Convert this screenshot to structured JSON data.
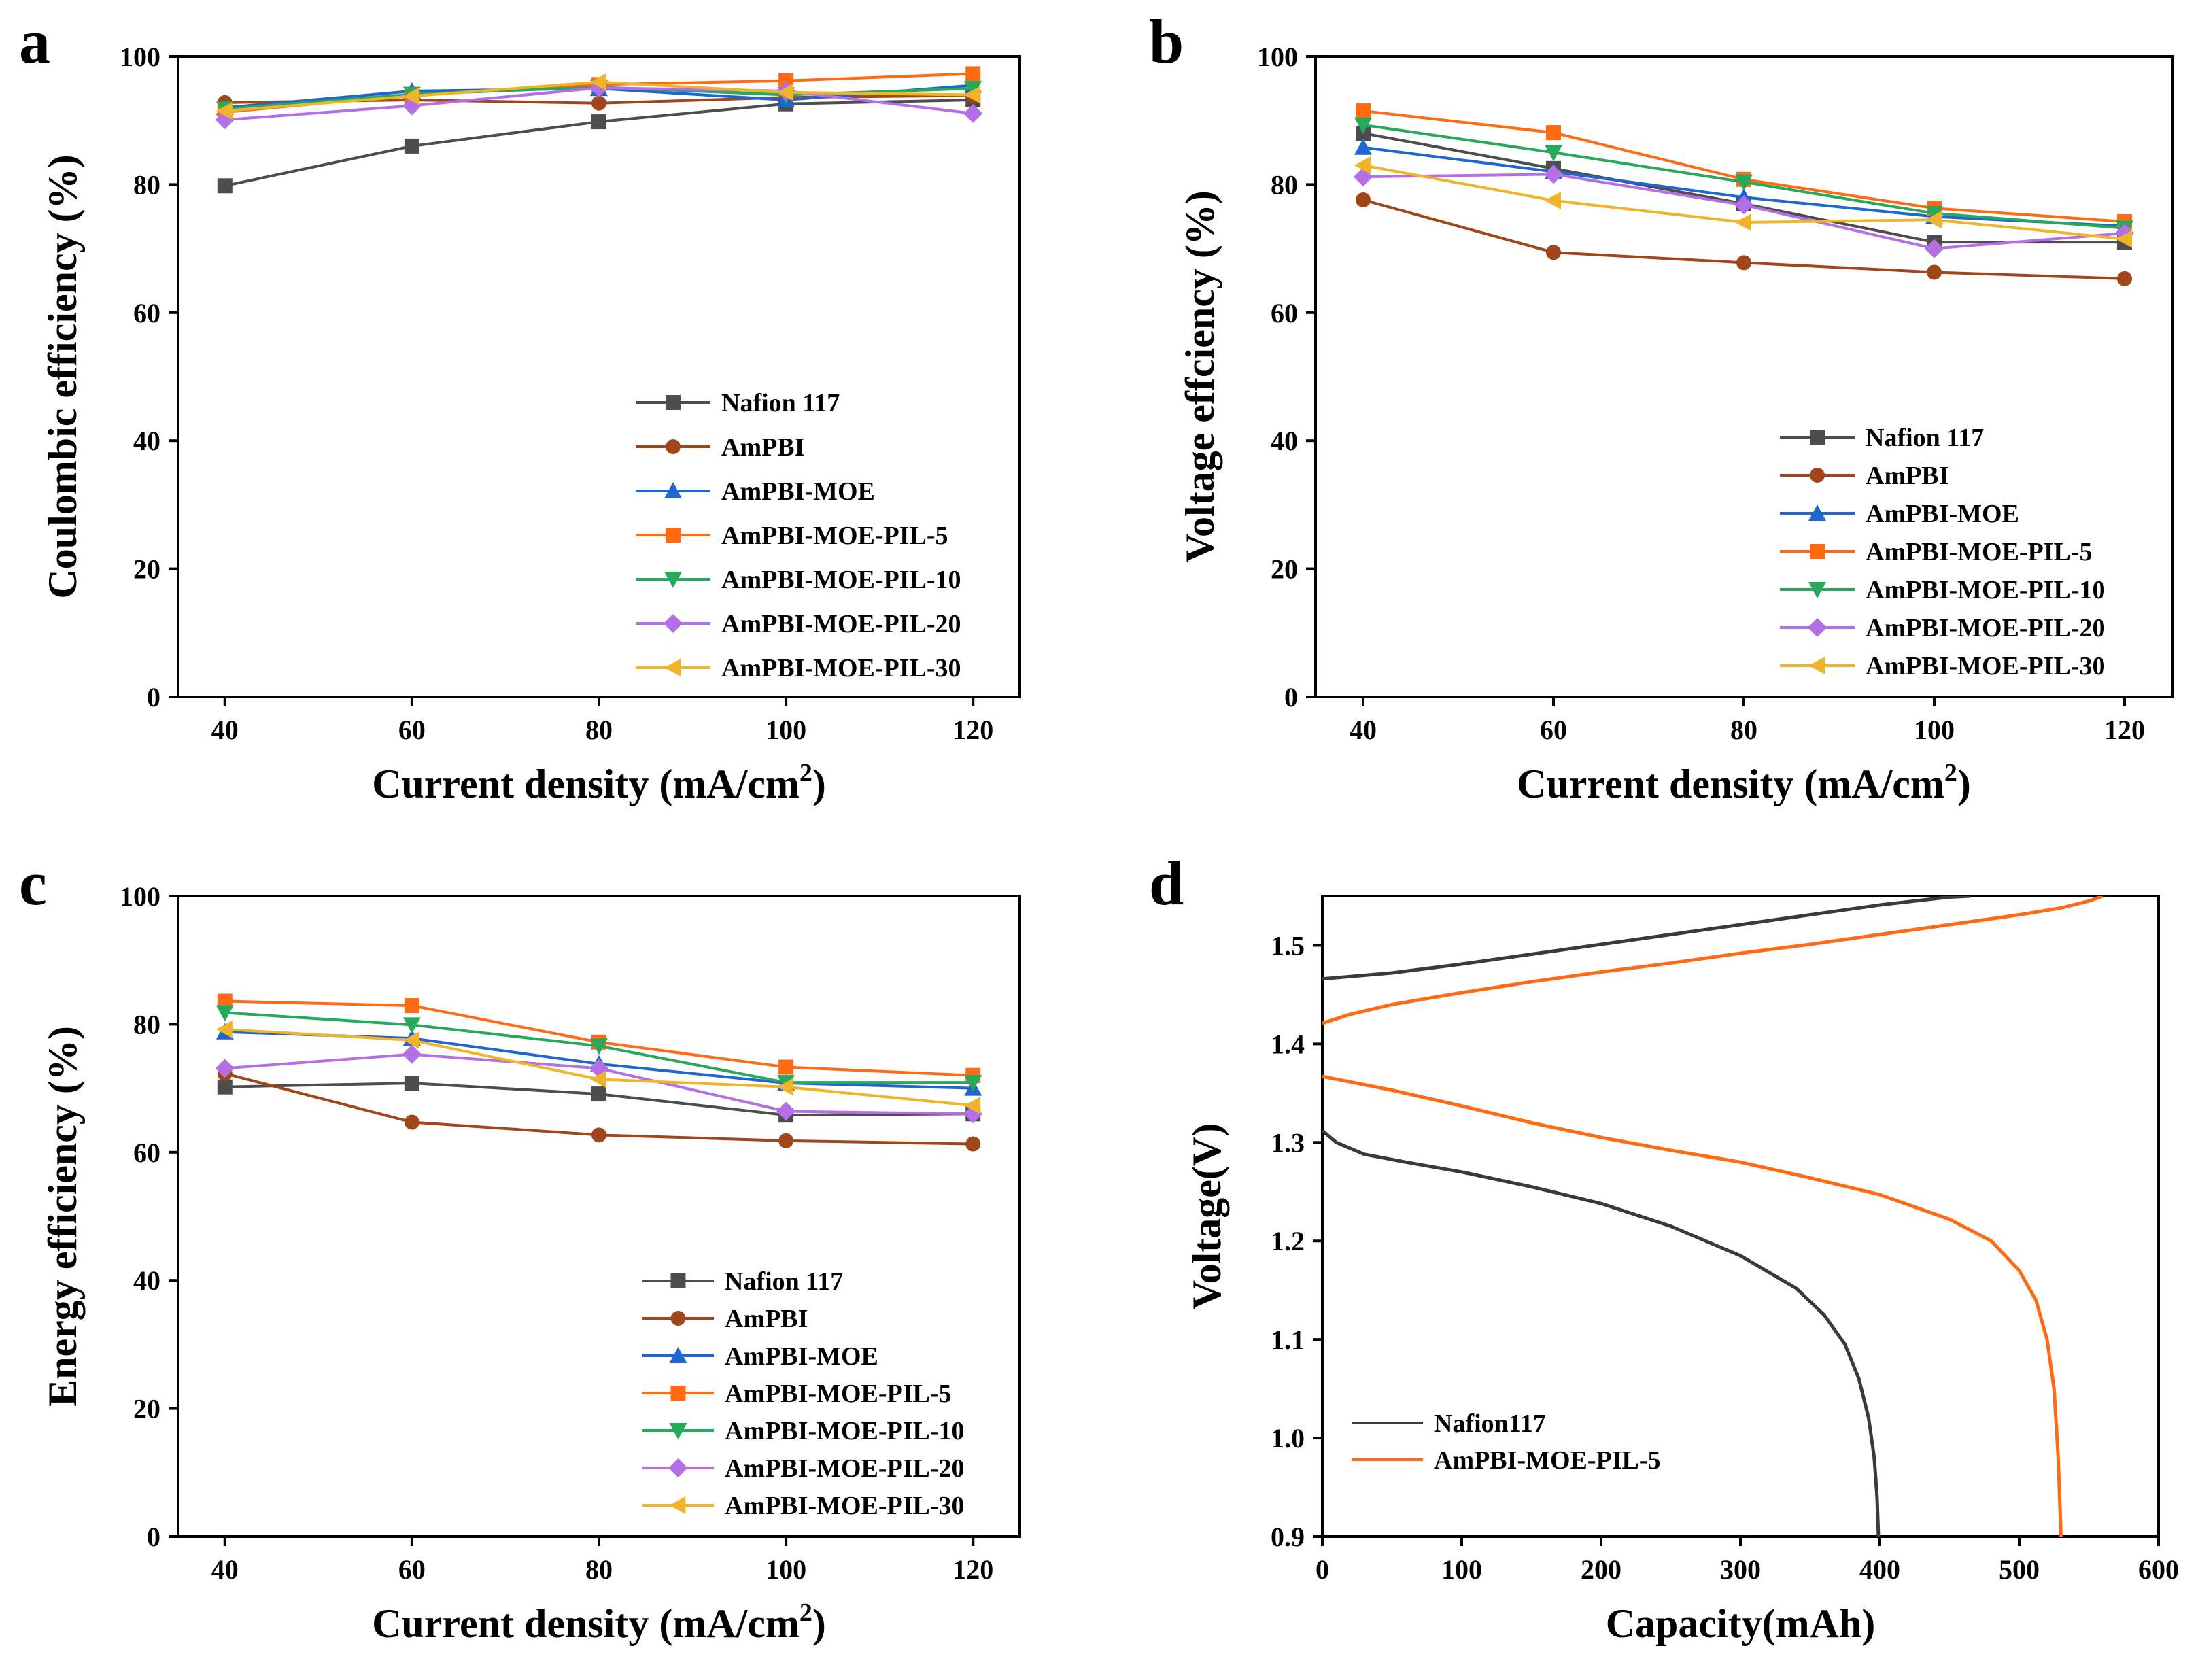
{
  "chart_data": [
    {
      "panel": "a",
      "type": "line",
      "xlabel": "Current density (mA/cm",
      "xlabel_sup": "2",
      "xlabel_close": ")",
      "ylabel": "Coulombic efficiency (%)",
      "xlim": [
        35,
        125
      ],
      "ylim": [
        0,
        100
      ],
      "xticks": [
        40,
        60,
        80,
        100,
        120
      ],
      "yticks": [
        0,
        20,
        40,
        60,
        80,
        100
      ],
      "x": [
        40,
        60,
        80,
        100,
        120
      ],
      "legend_position": "bottom-right",
      "series": [
        {
          "name": "Nafion 117",
          "color": "#4d4d4d",
          "marker": "square",
          "values": [
            79.8,
            86.0,
            89.8,
            92.6,
            93.2
          ]
        },
        {
          "name": "AmPBI",
          "color": "#a0461a",
          "marker": "circle",
          "values": [
            92.8,
            93.2,
            92.7,
            93.6,
            93.9
          ]
        },
        {
          "name": "AmPBI-MOE",
          "color": "#1f66d1",
          "marker": "triangle-up",
          "values": [
            92.0,
            94.6,
            95.0,
            93.2,
            95.5
          ]
        },
        {
          "name": "AmPBI-MOE-PIL-5",
          "color": "#ff6a13",
          "marker": "square",
          "values": [
            91.3,
            94.0,
            95.6,
            96.2,
            97.3
          ]
        },
        {
          "name": "AmPBI-MOE-PIL-10",
          "color": "#27a85a",
          "marker": "triangle-down",
          "values": [
            91.8,
            94.1,
            95.2,
            94.0,
            95.0
          ]
        },
        {
          "name": "AmPBI-MOE-PIL-20",
          "color": "#b46ee6",
          "marker": "diamond",
          "values": [
            90.1,
            92.3,
            95.1,
            94.6,
            91.1
          ]
        },
        {
          "name": "AmPBI-MOE-PIL-30",
          "color": "#f0b42a",
          "marker": "triangle-left",
          "values": [
            91.5,
            93.8,
            96.0,
            94.4,
            94.0
          ]
        }
      ]
    },
    {
      "panel": "b",
      "type": "line",
      "xlabel": "Current density (mA/cm",
      "xlabel_sup": "2",
      "xlabel_close": ")",
      "ylabel": "Voltage effciency (%)",
      "xlim": [
        35,
        125
      ],
      "ylim": [
        0,
        100
      ],
      "xticks": [
        40,
        60,
        80,
        100,
        120
      ],
      "yticks": [
        0,
        20,
        40,
        60,
        80,
        100
      ],
      "x": [
        40,
        60,
        80,
        100,
        120
      ],
      "legend_position": "bottom-right",
      "series": [
        {
          "name": "Nafion 117",
          "color": "#4d4d4d",
          "marker": "square",
          "values": [
            88.0,
            82.5,
            77.0,
            71.0,
            71.0
          ]
        },
        {
          "name": "AmPBI",
          "color": "#a0461a",
          "marker": "circle",
          "values": [
            77.6,
            69.4,
            67.8,
            66.3,
            65.3
          ]
        },
        {
          "name": "AmPBI-MOE",
          "color": "#1f66d1",
          "marker": "triangle-up",
          "values": [
            85.8,
            82.0,
            78.0,
            75.0,
            73.5
          ]
        },
        {
          "name": "AmPBI-MOE-PIL-5",
          "color": "#ff6a13",
          "marker": "square",
          "values": [
            91.5,
            88.1,
            80.8,
            76.3,
            74.2
          ]
        },
        {
          "name": "AmPBI-MOE-PIL-10",
          "color": "#27a85a",
          "marker": "triangle-down",
          "values": [
            89.3,
            85.0,
            80.4,
            75.5,
            73.2
          ]
        },
        {
          "name": "AmPBI-MOE-PIL-20",
          "color": "#b46ee6",
          "marker": "diamond",
          "values": [
            81.2,
            81.6,
            76.8,
            70.0,
            72.4
          ]
        },
        {
          "name": "AmPBI-MOE-PIL-30",
          "color": "#f0b42a",
          "marker": "triangle-left",
          "values": [
            83.0,
            77.5,
            74.1,
            74.5,
            71.5
          ]
        }
      ]
    },
    {
      "panel": "c",
      "type": "line",
      "xlabel": "Current density (mA/cm",
      "xlabel_sup": "2",
      "xlabel_close": ")",
      "ylabel": "Energy efficiency (%)",
      "xlim": [
        35,
        125
      ],
      "ylim": [
        0,
        100
      ],
      "xticks": [
        40,
        60,
        80,
        100,
        120
      ],
      "yticks": [
        0,
        20,
        40,
        60,
        80,
        100
      ],
      "x": [
        40,
        60,
        80,
        100,
        120
      ],
      "legend_position": "bottom-right",
      "series": [
        {
          "name": "Nafion 117",
          "color": "#4d4d4d",
          "marker": "square",
          "values": [
            70.2,
            70.8,
            69.1,
            65.8,
            66.0
          ]
        },
        {
          "name": "AmPBI",
          "color": "#a0461a",
          "marker": "circle",
          "values": [
            72.3,
            64.7,
            62.7,
            61.8,
            61.3
          ]
        },
        {
          "name": "AmPBI-MOE",
          "color": "#1f66d1",
          "marker": "triangle-up",
          "values": [
            78.8,
            77.8,
            73.8,
            70.8,
            70.0
          ]
        },
        {
          "name": "AmPBI-MOE-PIL-5",
          "color": "#ff6a13",
          "marker": "square",
          "values": [
            83.6,
            82.9,
            77.2,
            73.3,
            72.0
          ]
        },
        {
          "name": "AmPBI-MOE-PIL-10",
          "color": "#27a85a",
          "marker": "triangle-down",
          "values": [
            81.8,
            79.9,
            76.6,
            70.9,
            70.9
          ]
        },
        {
          "name": "AmPBI-MOE-PIL-20",
          "color": "#b46ee6",
          "marker": "diamond",
          "values": [
            73.1,
            75.3,
            73.1,
            66.4,
            66.0
          ]
        },
        {
          "name": "AmPBI-MOE-PIL-30",
          "color": "#f0b42a",
          "marker": "triangle-left",
          "values": [
            79.2,
            77.5,
            71.4,
            70.2,
            67.3
          ]
        }
      ]
    },
    {
      "panel": "d",
      "type": "line",
      "xlabel": "Capacity(mAh)",
      "ylabel": "Voltage(V)",
      "xlim": [
        0,
        600
      ],
      "ylim": [
        0.9,
        1.55
      ],
      "xticks": [
        0,
        100,
        200,
        300,
        400,
        500,
        600
      ],
      "yticks": [
        0.9,
        1.0,
        1.1,
        1.2,
        1.3,
        1.4,
        1.5
      ],
      "legend_position": "bottom-left",
      "series": [
        {
          "name": "Nafion117",
          "color": "#3a3a3a",
          "marker": "none",
          "charge": {
            "x": [
              0,
              50,
              100,
              150,
              200,
              250,
              300,
              350,
              400,
              450,
              465
            ],
            "y": [
              1.466,
              1.472,
              1.481,
              1.491,
              1.501,
              1.511,
              1.521,
              1.531,
              1.541,
              1.549,
              1.55
            ]
          },
          "discharge": {
            "x": [
              0,
              10,
              30,
              60,
              100,
              150,
              200,
              250,
              300,
              340,
              360,
              375,
              385,
              392,
              396,
              398,
              399
            ],
            "y": [
              1.312,
              1.3,
              1.288,
              1.28,
              1.27,
              1.255,
              1.238,
              1.215,
              1.185,
              1.152,
              1.125,
              1.095,
              1.06,
              1.02,
              0.98,
              0.94,
              0.9
            ]
          }
        },
        {
          "name": "AmPBI-MOE-PIL-5",
          "color": "#ff6a13",
          "marker": "none",
          "charge": {
            "x": [
              0,
              20,
              50,
              100,
              150,
              200,
              250,
              300,
              350,
              400,
              450,
              500,
              530,
              550,
              560
            ],
            "y": [
              1.421,
              1.43,
              1.44,
              1.452,
              1.463,
              1.473,
              1.482,
              1.492,
              1.501,
              1.511,
              1.521,
              1.531,
              1.538,
              1.545,
              1.55
            ]
          },
          "discharge": {
            "x": [
              0,
              50,
              100,
              150,
              200,
              250,
              300,
              350,
              400,
              450,
              480,
              500,
              512,
              520,
              525,
              528,
              530
            ],
            "y": [
              1.367,
              1.353,
              1.337,
              1.32,
              1.305,
              1.292,
              1.28,
              1.264,
              1.247,
              1.222,
              1.2,
              1.17,
              1.14,
              1.1,
              1.05,
              0.98,
              0.9
            ]
          }
        }
      ]
    }
  ]
}
